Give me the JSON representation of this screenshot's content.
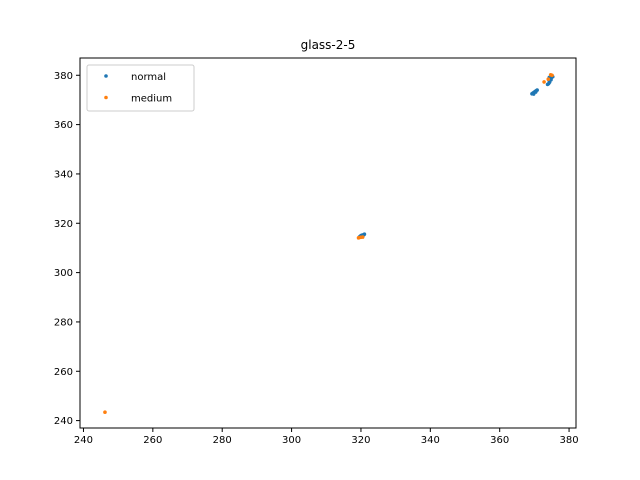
{
  "chart_data": {
    "type": "scatter",
    "title": "glass-2-5",
    "xlabel": "",
    "ylabel": "",
    "xlim": [
      239,
      382
    ],
    "ylim": [
      237,
      387
    ],
    "xticks": [
      240,
      260,
      280,
      300,
      320,
      340,
      360,
      380
    ],
    "yticks": [
      240,
      260,
      280,
      300,
      320,
      340,
      360,
      380
    ],
    "grid": false,
    "legend_position": "upper-left",
    "series": [
      {
        "name": "normal",
        "color": "#1f77b4",
        "points": [
          [
            319.6,
            314.5
          ],
          [
            320.0,
            315.0
          ],
          [
            320.4,
            315.2
          ],
          [
            320.8,
            315.3
          ],
          [
            321.0,
            315.6
          ],
          [
            320.2,
            314.8
          ],
          [
            369.3,
            372.5
          ],
          [
            369.6,
            372.8
          ],
          [
            369.9,
            373.1
          ],
          [
            370.2,
            373.4
          ],
          [
            370.5,
            373.7
          ],
          [
            370.8,
            374.0
          ],
          [
            370.4,
            373.2
          ],
          [
            369.8,
            372.4
          ],
          [
            373.8,
            376.3
          ],
          [
            374.1,
            376.6
          ],
          [
            374.4,
            377.2
          ],
          [
            374.2,
            378.0
          ],
          [
            374.6,
            378.5
          ],
          [
            374.9,
            379.0
          ],
          [
            375.3,
            379.4
          ],
          [
            374.3,
            379.1
          ],
          [
            374.8,
            378.2
          ]
        ]
      },
      {
        "name": "medium",
        "color": "#ff7f0e",
        "points": [
          [
            246.2,
            243.4
          ],
          [
            319.3,
            314.1
          ],
          [
            319.9,
            314.3
          ],
          [
            320.5,
            314.4
          ],
          [
            372.8,
            377.3
          ],
          [
            374.0,
            378.4
          ],
          [
            374.7,
            380.2
          ],
          [
            375.1,
            380.0
          ]
        ]
      }
    ]
  }
}
